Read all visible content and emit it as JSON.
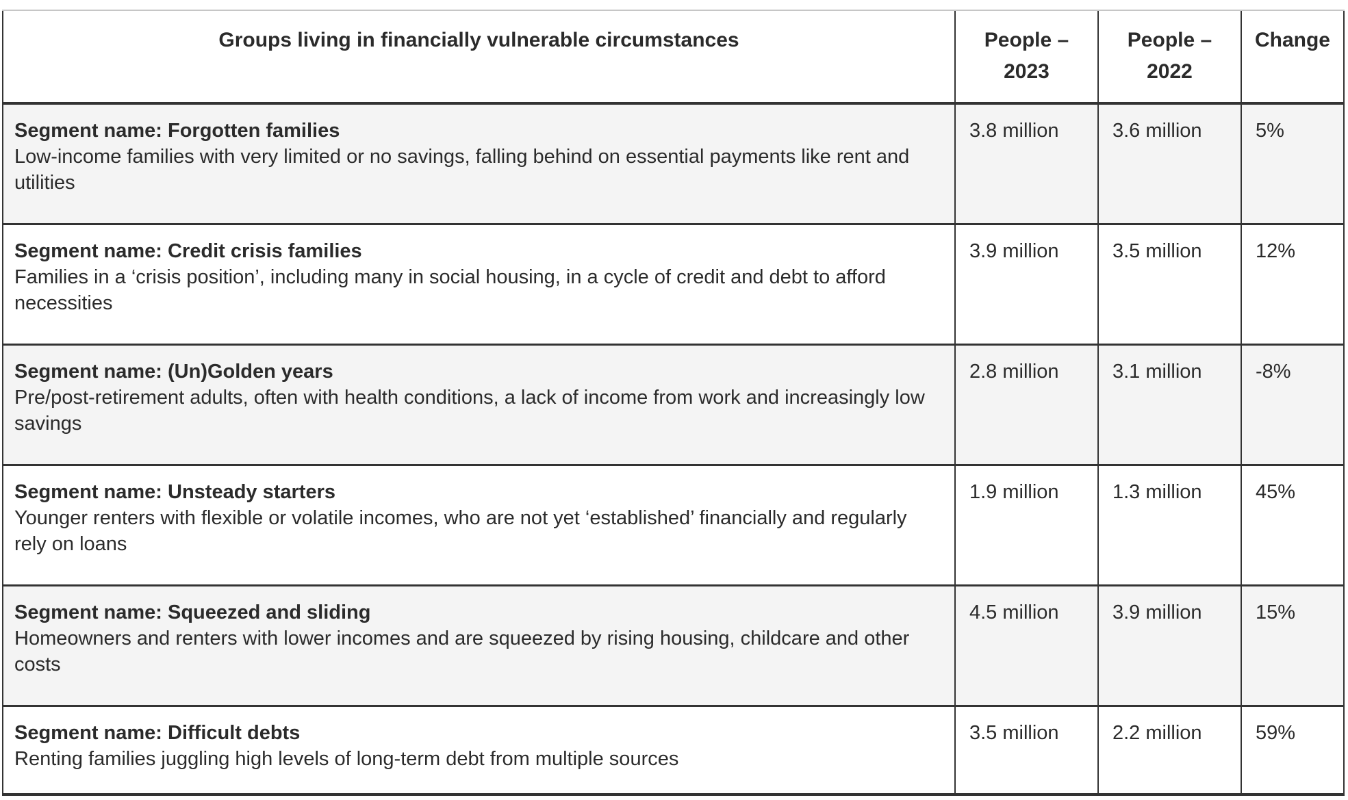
{
  "table": {
    "headers": {
      "groups": "Groups living in financially vulnerable circumstances",
      "people_2023": "People – 2023",
      "people_2022": "People – 2022",
      "change": "Change"
    },
    "rows": [
      {
        "segment": "Segment name: Forgotten families",
        "description": "Low-income families with very limited or no savings, falling behind on essential payments like rent and utilities",
        "people_2023": "3.8 million",
        "people_2022": "3.6 million",
        "change": "5%"
      },
      {
        "segment": "Segment name: Credit crisis families",
        "description": "Families in a ‘crisis position’, including many in social housing, in a cycle of credit and debt to afford necessities",
        "people_2023": "3.9 million",
        "people_2022": "3.5 million",
        "change": "12%"
      },
      {
        "segment": "Segment name: (Un)Golden years",
        "description": "Pre/post-retirement adults, often with health conditions, a lack of income from work and increasingly low savings",
        "people_2023": "2.8 million",
        "people_2022": "3.1 million",
        "change": "-8%"
      },
      {
        "segment": "Segment name: Unsteady starters",
        "description": "Younger renters with flexible or volatile incomes, who are not yet ‘established’ financially and regularly rely on loans",
        "people_2023": "1.9 million",
        "people_2022": "1.3 million",
        "change": "45%"
      },
      {
        "segment": "Segment name: Squeezed and sliding",
        "description": "Homeowners and renters with lower incomes and are squeezed by rising housing, childcare and other costs",
        "people_2023": "4.5 million",
        "people_2022": "3.9 million",
        "change": "15%"
      },
      {
        "segment": "Segment name: Difficult debts",
        "description": "Renting families juggling high levels of long-term debt from multiple sources",
        "people_2023": "3.5 million",
        "people_2022": "2.2 million",
        "change": "59%"
      }
    ]
  },
  "colors": {
    "border": "#333333",
    "top_border": "#c6c6c6",
    "stripe_row_bg": "#f4f4f4",
    "text": "#2b2b2b",
    "background": "#ffffff"
  }
}
